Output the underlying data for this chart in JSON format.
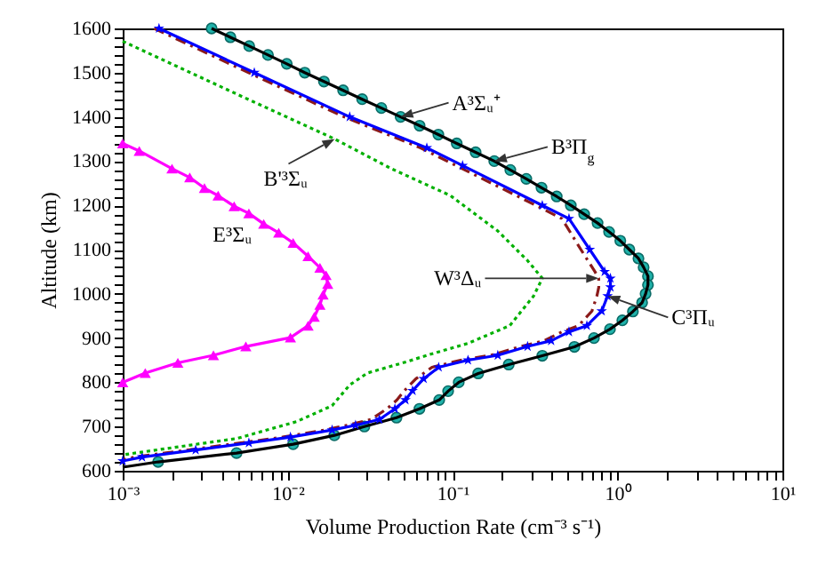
{
  "chart_data": {
    "type": "line",
    "xlabel": "Volume Production Rate (cm⁻³ s⁻¹)",
    "ylabel": "Altitude (km)",
    "log": "x",
    "xlim": [
      0.001,
      10
    ],
    "ylim": [
      600,
      1600
    ],
    "xticks": [
      {
        "value": 0.001,
        "label": "10⁻³"
      },
      {
        "value": 0.002,
        "label": null
      },
      {
        "value": 0.003,
        "label": null
      },
      {
        "value": 0.004,
        "label": null
      },
      {
        "value": 0.005,
        "label": null
      },
      {
        "value": 0.006,
        "label": null
      },
      {
        "value": 0.007,
        "label": null
      },
      {
        "value": 0.008,
        "label": null
      },
      {
        "value": 0.009,
        "label": null
      },
      {
        "value": 0.01,
        "label": "10⁻²"
      },
      {
        "value": 0.02,
        "label": null
      },
      {
        "value": 0.03,
        "label": null
      },
      {
        "value": 0.04,
        "label": null
      },
      {
        "value": 0.05,
        "label": null
      },
      {
        "value": 0.06,
        "label": null
      },
      {
        "value": 0.07,
        "label": null
      },
      {
        "value": 0.08,
        "label": null
      },
      {
        "value": 0.09,
        "label": null
      },
      {
        "value": 0.1,
        "label": "10⁻¹"
      },
      {
        "value": 0.2,
        "label": null
      },
      {
        "value": 0.3,
        "label": null
      },
      {
        "value": 0.4,
        "label": null
      },
      {
        "value": 0.5,
        "label": null
      },
      {
        "value": 0.6,
        "label": null
      },
      {
        "value": 0.7,
        "label": null
      },
      {
        "value": 0.8,
        "label": null
      },
      {
        "value": 0.9,
        "label": null
      },
      {
        "value": 1,
        "label": "10⁰"
      },
      {
        "value": 2,
        "label": null
      },
      {
        "value": 3,
        "label": null
      },
      {
        "value": 4,
        "label": null
      },
      {
        "value": 5,
        "label": null
      },
      {
        "value": 6,
        "label": null
      },
      {
        "value": 7,
        "label": null
      },
      {
        "value": 8,
        "label": null
      },
      {
        "value": 9,
        "label": null
      },
      {
        "value": 10,
        "label": "10¹"
      }
    ],
    "yticks": [
      600,
      {
        "value": 620,
        "label": null
      },
      {
        "value": 640,
        "label": null
      },
      {
        "value": 660,
        "label": null
      },
      {
        "value": 680,
        "label": null
      },
      700,
      {
        "value": 720,
        "label": null
      },
      {
        "value": 740,
        "label": null
      },
      {
        "value": 760,
        "label": null
      },
      {
        "value": 780,
        "label": null
      },
      800,
      {
        "value": 820,
        "label": null
      },
      {
        "value": 840,
        "label": null
      },
      {
        "value": 860,
        "label": null
      },
      {
        "value": 880,
        "label": null
      },
      900,
      {
        "value": 920,
        "label": null
      },
      {
        "value": 940,
        "label": null
      },
      {
        "value": 960,
        "label": null
      },
      {
        "value": 980,
        "label": null
      },
      1000,
      {
        "value": 1020,
        "label": null
      },
      {
        "value": 1040,
        "label": null
      },
      {
        "value": 1060,
        "label": null
      },
      {
        "value": 1080,
        "label": null
      },
      1100,
      {
        "value": 1120,
        "label": null
      },
      {
        "value": 1140,
        "label": null
      },
      {
        "value": 1160,
        "label": null
      },
      {
        "value": 1180,
        "label": null
      },
      1200,
      {
        "value": 1220,
        "label": null
      },
      {
        "value": 1240,
        "label": null
      },
      {
        "value": 1260,
        "label": null
      },
      {
        "value": 1280,
        "label": null
      },
      1300,
      {
        "value": 1320,
        "label": null
      },
      {
        "value": 1340,
        "label": null
      },
      {
        "value": 1360,
        "label": null
      },
      {
        "value": 1380,
        "label": null
      },
      1400,
      {
        "value": 1420,
        "label": null
      },
      {
        "value": 1440,
        "label": null
      },
      {
        "value": 1460,
        "label": null
      },
      {
        "value": 1480,
        "label": null
      },
      1500,
      {
        "value": 1520,
        "label": null
      },
      {
        "value": 1540,
        "label": null
      },
      {
        "value": 1560,
        "label": null
      },
      {
        "value": 1580,
        "label": null
      },
      1600
    ],
    "annotations": [
      {
        "text": "A³Σᵤ⁺",
        "x": 0.0484,
        "y": 1400
      },
      {
        "text": "B³Π$_{g}$",
        "x": 0.179,
        "y": 1300
      },
      {
        "text": "W³Δᵤ",
        "x": 0.769,
        "y": 1035
      },
      {
        "text": "C³Πᵤ",
        "x": 0.871,
        "y": 995
      },
      {
        "text": "B'³Σᵤ",
        "x": 0.0193,
        "y": 1350
      },
      {
        "text": "E³Σᵤ",
        "x": 0.00474,
        "y": 1198
      }
    ],
    "series": [
      {
        "type": "scatter",
        "marker": "circle",
        "color": "#20b2aa",
        "x": [
          0.00346,
          0.0045,
          0.00585,
          0.0076,
          0.00988,
          0.0127,
          0.0166,
          0.0217,
          0.0283,
          0.037,
          0.0484,
          0.0631,
          0.082,
          0.106,
          0.138,
          0.179,
          0.224,
          0.28,
          0.346,
          0.428,
          0.521,
          0.628,
          0.757,
          0.889,
          1.04,
          1.18,
          1.34,
          1.44,
          1.53,
          1.53,
          1.48,
          1.41,
          1.24,
          1.07,
          0.9,
          0.72,
          0.548,
          0.35,
          0.219,
          0.143,
          0.109,
          0.094,
          0.083,
          0.063,
          0.0457,
          0.0292,
          0.0192,
          0.0108,
          0.0049,
          0.00164
        ],
        "values": [
          1600,
          1580,
          1560,
          1540,
          1520,
          1500,
          1480,
          1460,
          1440,
          1420,
          1400,
          1380,
          1360,
          1340,
          1320,
          1300,
          1280,
          1260,
          1240,
          1220,
          1200,
          1180,
          1160,
          1140,
          1120,
          1100,
          1080,
          1060,
          1040,
          1020,
          1000,
          980,
          960,
          940,
          920,
          900,
          880,
          860,
          840,
          820,
          800,
          780,
          760,
          740,
          720,
          700,
          680,
          660,
          640,
          620
        ]
      },
      {
        "type": "line",
        "line_style": "solid",
        "color": "#000000",
        "x": [
          0.00346,
          0.0045,
          0.00585,
          0.0076,
          0.00988,
          0.0127,
          0.0166,
          0.0217,
          0.0283,
          0.037,
          0.0484,
          0.0631,
          0.082,
          0.106,
          0.138,
          0.179,
          0.224,
          0.28,
          0.346,
          0.428,
          0.521,
          0.628,
          0.757,
          0.889,
          1.04,
          1.18,
          1.34,
          1.44,
          1.53,
          1.53,
          1.48,
          1.41,
          1.24,
          1.07,
          0.9,
          0.72,
          0.548,
          0.35,
          0.219,
          0.143,
          0.109,
          0.094,
          0.083,
          0.063,
          0.0457,
          0.0292,
          0.0192,
          0.0108,
          0.0049,
          0.00164,
          0.001
        ],
        "values": [
          1600,
          1580,
          1560,
          1540,
          1520,
          1500,
          1480,
          1460,
          1440,
          1420,
          1400,
          1380,
          1360,
          1340,
          1320,
          1300,
          1280,
          1260,
          1240,
          1220,
          1200,
          1180,
          1160,
          1140,
          1120,
          1100,
          1080,
          1060,
          1040,
          1020,
          1000,
          980,
          960,
          940,
          920,
          900,
          880,
          860,
          840,
          820,
          800,
          780,
          760,
          740,
          720,
          700,
          680,
          660,
          640,
          620,
          608
        ]
      },
      {
        "type": "line",
        "line_style": "dashed",
        "color": "#8b1a1a",
        "x": [
          0.00155,
          0.0058,
          0.022,
          0.064,
          0.105,
          0.32,
          0.46,
          0.6,
          0.73,
          0.769,
          0.77,
          0.75,
          0.7,
          0.58,
          0.46,
          0.36,
          0.26,
          0.17,
          0.112,
          0.075,
          0.06,
          0.051,
          0.046,
          0.04,
          0.032,
          0.023,
          0.0167,
          0.0093,
          0.0052,
          0.0025,
          0.00118,
          0.001
        ],
        "values": [
          1600,
          1500,
          1400,
          1330,
          1290,
          1200,
          1170,
          1100,
          1050,
          1035,
          1015,
          995,
          961,
          928,
          914,
          894,
          881,
          861,
          850,
          834,
          808,
          781,
          760,
          740,
          716,
          703,
          692,
          676,
          663,
          647,
          631,
          625
        ]
      },
      {
        "type": "line",
        "line_style": "solid",
        "marker": "star",
        "color": "#0000ff",
        "x": [
          0.00166,
          0.00628,
          0.0238,
          0.0698,
          0.115,
          0.35,
          0.508,
          0.679,
          0.836,
          0.906,
          0.906,
          0.871,
          0.802,
          0.652,
          0.508,
          0.396,
          0.285,
          0.188,
          0.124,
          0.0824,
          0.0668,
          0.0572,
          0.0518,
          0.0447,
          0.036,
          0.0258,
          0.0186,
          0.0104,
          0.00582,
          0.00277,
          0.00131,
          0.001
        ],
        "values": [
          1600,
          1500,
          1400,
          1330,
          1290,
          1200,
          1170,
          1100,
          1050,
          1035,
          1015,
          995,
          961,
          928,
          914,
          894,
          881,
          861,
          850,
          834,
          808,
          781,
          760,
          740,
          716,
          703,
          692,
          676,
          663,
          647,
          631,
          622
        ]
      },
      {
        "type": "line",
        "line_style": "dotted",
        "color": "#00b000",
        "x": [
          0.001,
          0.00502,
          0.0193,
          0.0425,
          0.0971,
          0.188,
          0.285,
          0.35,
          0.31,
          0.222,
          0.124,
          0.0698,
          0.0545,
          0.0305,
          0.0238,
          0.0186,
          0.0113,
          0.00493,
          0.001
        ],
        "values": [
          1571,
          1450,
          1350,
          1283,
          1222,
          1142,
          1075,
          1035,
          995,
          928,
          888,
          861,
          848,
          821,
          794,
          747,
          711,
          673,
          636
        ]
      },
      {
        "type": "line",
        "line_style": "solid",
        "marker": "triangle",
        "color": "#ff00ff",
        "x": [
          0.001,
          0.00126,
          0.00199,
          0.00255,
          0.00313,
          0.00379,
          0.00474,
          0.00582,
          0.00716,
          0.00883,
          0.0108,
          0.0133,
          0.0157,
          0.0171,
          0.0175,
          0.0164,
          0.0157,
          0.0145,
          0.0133,
          0.0104,
          0.00558,
          0.00355,
          0.00216,
          0.00137,
          0.001
        ],
        "values": [
          1340,
          1323,
          1283,
          1263,
          1239,
          1222,
          1198,
          1182,
          1158,
          1138,
          1115,
          1085,
          1059,
          1042,
          1022,
          998,
          975,
          948,
          928,
          901,
          881,
          861,
          844,
          821,
          800
        ]
      }
    ]
  }
}
